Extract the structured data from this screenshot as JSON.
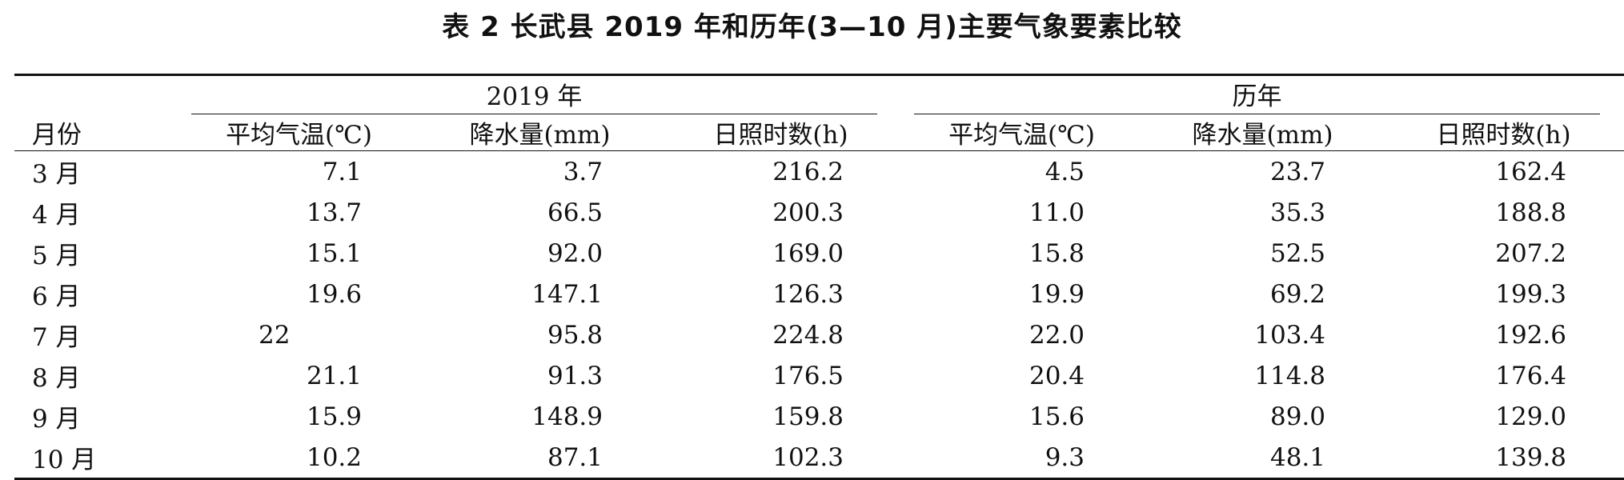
{
  "title": "表 2  长武县 2019 年和历年(3—10 月)主要气象要素比较",
  "table": {
    "month_header": "月份",
    "groups": [
      "2019 年",
      "历年"
    ],
    "sub_headers": [
      "平均气温(℃)",
      "降水量(mm)",
      "日照时数(h)",
      "平均气温(℃)",
      "降水量(mm)",
      "日照时数(h)"
    ],
    "rows": [
      {
        "month": "3 月",
        "cells": [
          "7.1",
          "3.7",
          "216.2",
          "4.5",
          "23.7",
          "162.4"
        ]
      },
      {
        "month": "4 月",
        "cells": [
          "13.7",
          "66.5",
          "200.3",
          "11.0",
          "35.3",
          "188.8"
        ]
      },
      {
        "month": "5 月",
        "cells": [
          "15.1",
          "92.0",
          "169.0",
          "15.8",
          "52.5",
          "207.2"
        ]
      },
      {
        "month": "6 月",
        "cells": [
          "19.6",
          "147.1",
          "126.3",
          "19.9",
          "69.2",
          "199.3"
        ]
      },
      {
        "month": "7 月",
        "cells": [
          "22",
          "95.8",
          "224.8",
          "22.0",
          "103.4",
          "192.6"
        ]
      },
      {
        "month": "8 月",
        "cells": [
          "21.1",
          "91.3",
          "176.5",
          "20.4",
          "114.8",
          "176.4"
        ]
      },
      {
        "month": "9 月",
        "cells": [
          "15.9",
          "148.9",
          "159.8",
          "15.6",
          "89.0",
          "129.0"
        ]
      },
      {
        "month": "10 月",
        "cells": [
          "10.2",
          "87.1",
          "102.3",
          "9.3",
          "48.1",
          "139.8"
        ]
      }
    ]
  }
}
